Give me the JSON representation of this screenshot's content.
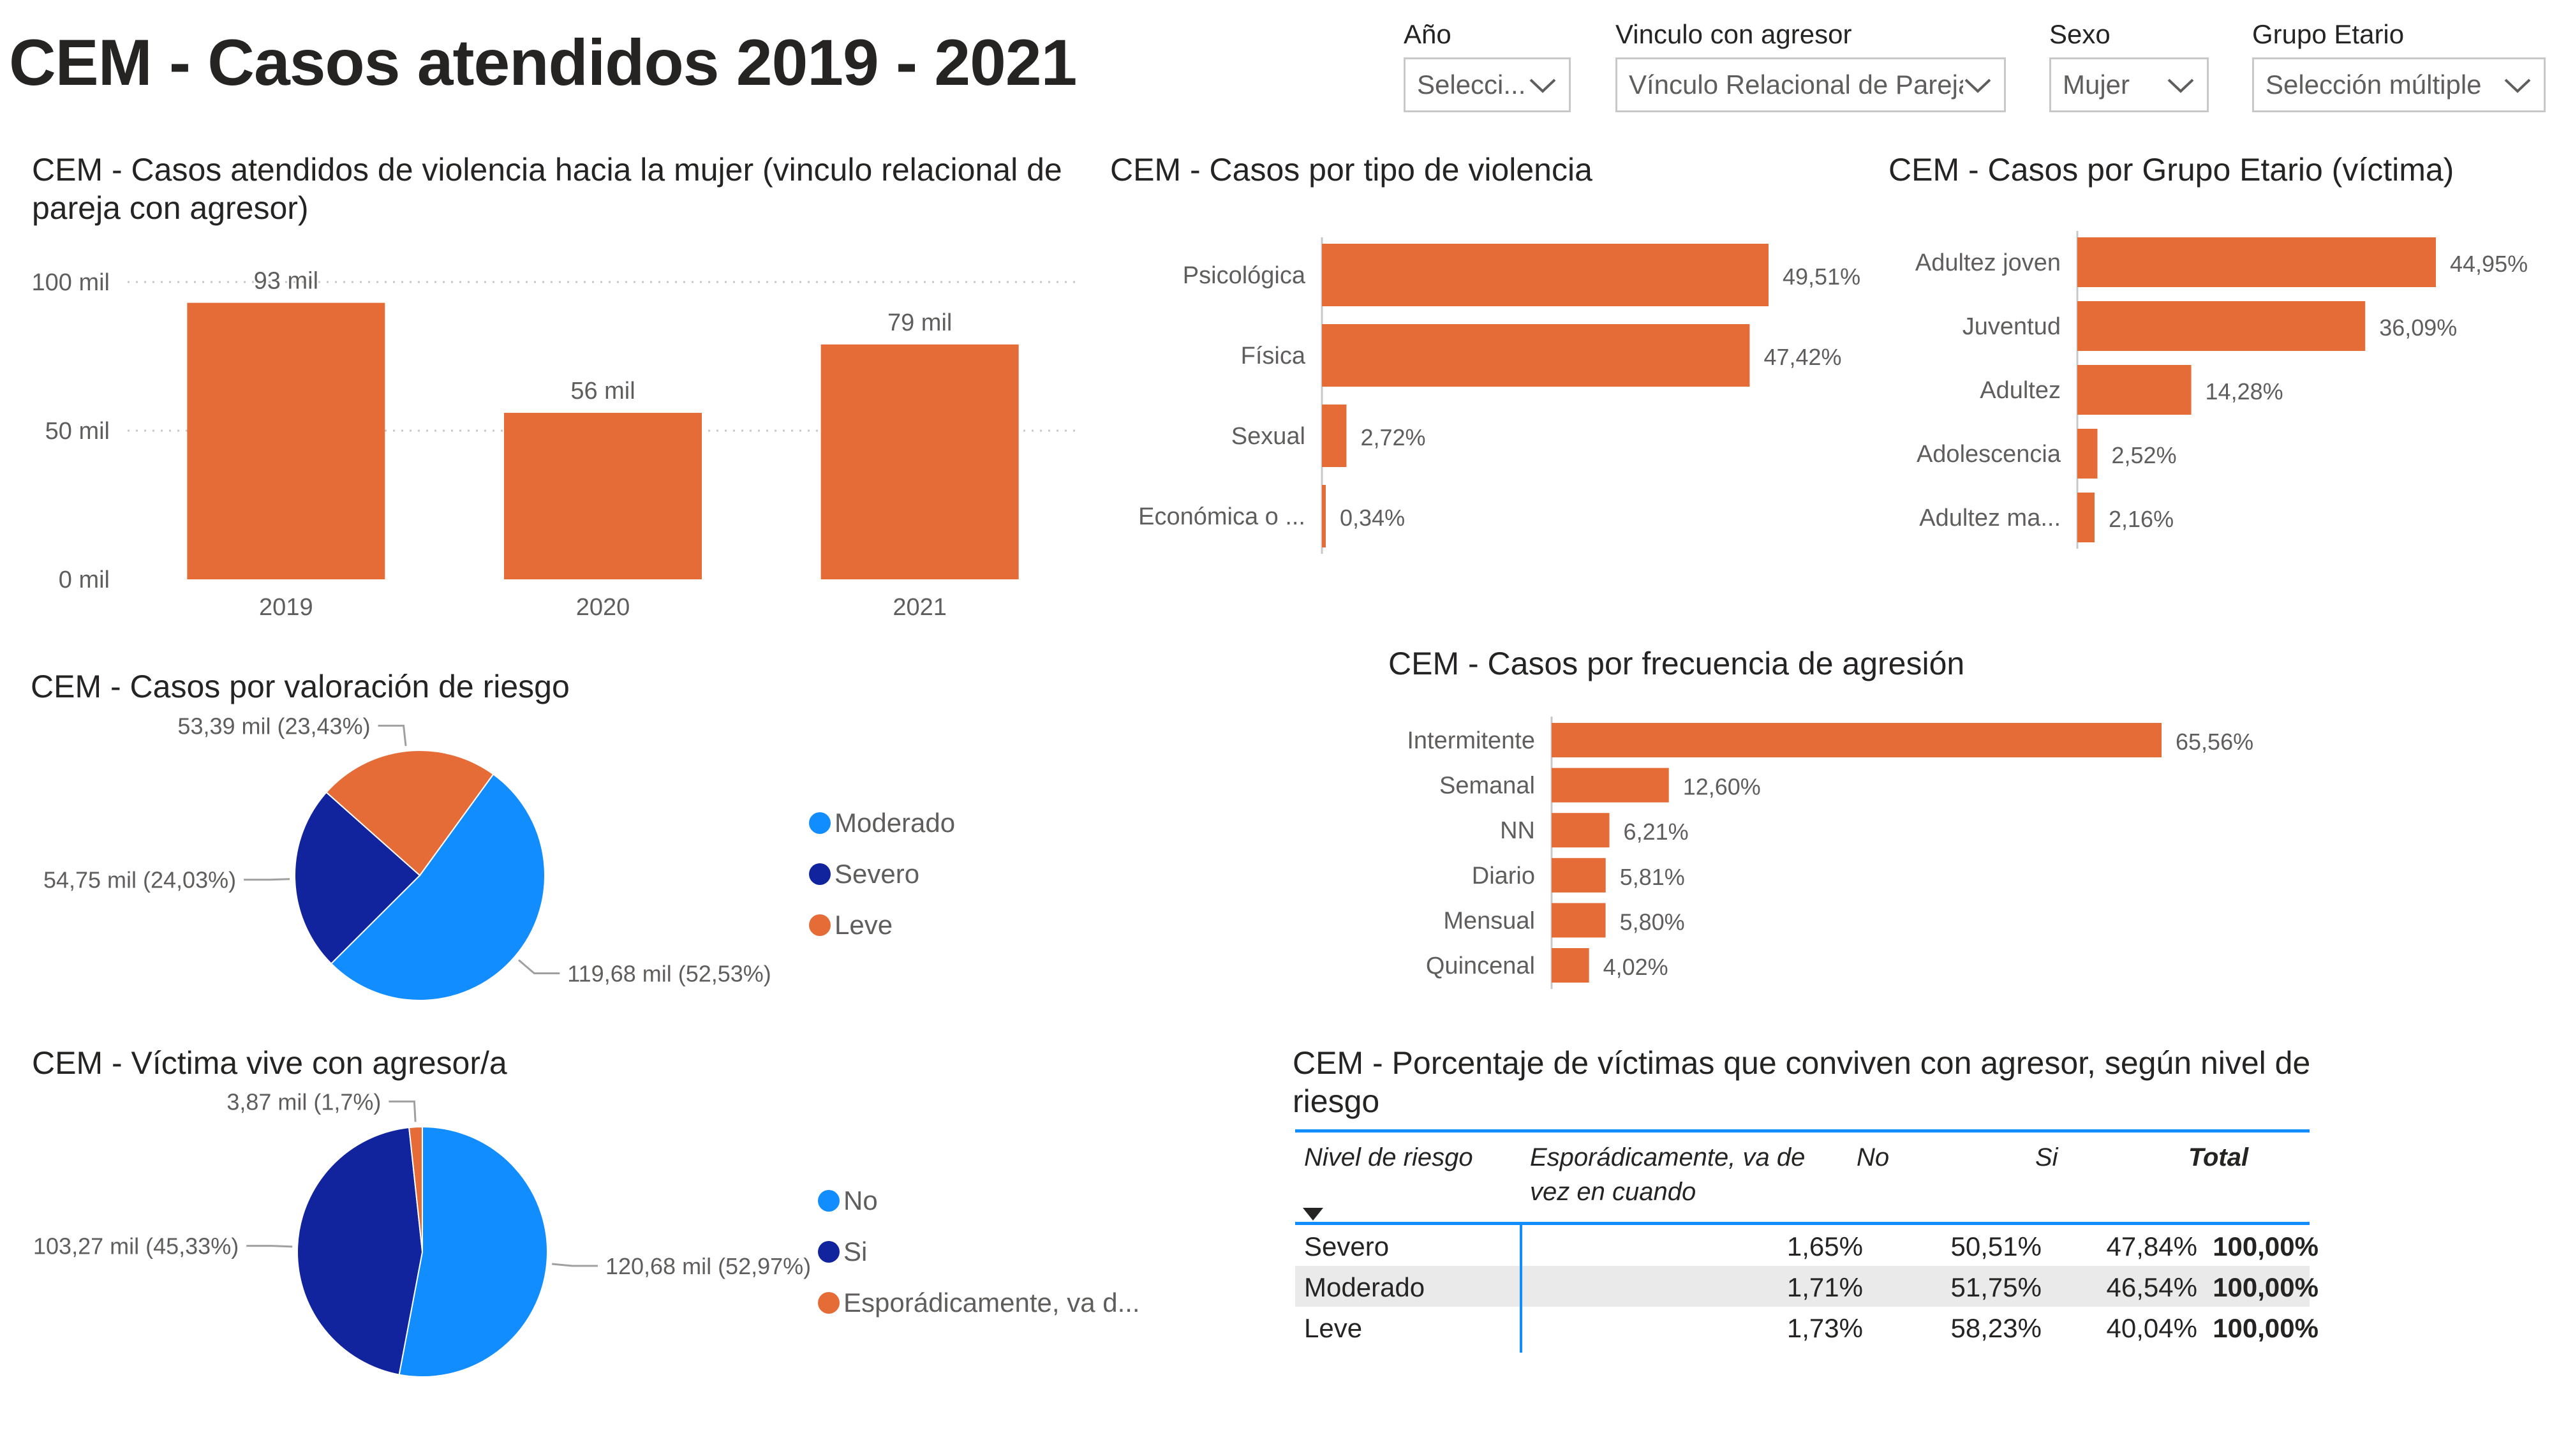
{
  "page_title": "CEM - Casos atendidos 2019 - 2021",
  "filters": [
    {
      "label": "Año",
      "value": "Selecci..."
    },
    {
      "label": "Vinculo con agresor",
      "value": "Vínculo Relacional de Pareja"
    },
    {
      "label": "Sexo",
      "value": "Mujer"
    },
    {
      "label": "Grupo Etario",
      "value": "Selección múltiple"
    }
  ],
  "colors": {
    "orange": "#e66c37",
    "blue": "#118dff",
    "navy": "#12239e",
    "axis_text": "#605e5c"
  },
  "chart_data": [
    {
      "id": "anual",
      "type": "bar",
      "title": "CEM - Casos atendidos de violencia hacia la mujer (vinculo relacional de pareja con agresor)",
      "categories": [
        "2019",
        "2020",
        "2021"
      ],
      "values": [
        93000,
        56000,
        79000
      ],
      "data_labels": [
        "93 mil",
        "56 mil",
        "79 mil"
      ],
      "y_ticks": [
        0,
        50000,
        100000
      ],
      "y_tick_labels": [
        "0 mil",
        "50 mil",
        "100 mil"
      ],
      "ylim": [
        0,
        100000
      ],
      "grid": true
    },
    {
      "id": "tipo",
      "type": "bar",
      "orientation": "horizontal",
      "title": "CEM - Casos por tipo de violencia",
      "categories": [
        "Psicológica",
        "Física",
        "Sexual",
        "Económica o ..."
      ],
      "values": [
        49.51,
        47.42,
        2.72,
        0.34
      ],
      "data_labels": [
        "49,51%",
        "47,42%",
        "2,72%",
        "0,34%"
      ]
    },
    {
      "id": "etario",
      "type": "bar",
      "orientation": "horizontal",
      "title": "CEM - Casos por Grupo Etario (víctima)",
      "categories": [
        "Adultez joven",
        "Juventud",
        "Adultez",
        "Adolescencia",
        "Adultez ma..."
      ],
      "values": [
        44.95,
        36.09,
        14.28,
        2.52,
        2.16
      ],
      "data_labels": [
        "44,95%",
        "36,09%",
        "14,28%",
        "2,52%",
        "2,16%"
      ]
    },
    {
      "id": "frecuencia",
      "type": "bar",
      "orientation": "horizontal",
      "title": "CEM - Casos por frecuencia de agresión",
      "categories": [
        "Intermitente",
        "Semanal",
        "NN",
        "Diario",
        "Mensual",
        "Quincenal"
      ],
      "values": [
        65.56,
        12.6,
        6.21,
        5.81,
        5.8,
        4.02
      ],
      "data_labels": [
        "65,56%",
        "12,60%",
        "6,21%",
        "5,81%",
        "5,80%",
        "4,02%"
      ]
    },
    {
      "id": "riesgo",
      "type": "pie",
      "title": "CEM - Casos por valoración de riesgo",
      "slices": [
        {
          "name": "Moderado",
          "value": 119.68,
          "label": "119,68 mil (52,53%)",
          "color": "#118dff"
        },
        {
          "name": "Severo",
          "value": 54.75,
          "label": "54,75 mil (24,03%)",
          "color": "#12239e"
        },
        {
          "name": "Leve",
          "value": 53.39,
          "label": "53,39 mil (23,43%)",
          "color": "#e66c37"
        }
      ],
      "legend": [
        "Moderado",
        "Severo",
        "Leve"
      ],
      "legend_position": "right"
    },
    {
      "id": "convive",
      "type": "pie",
      "title": "CEM - Víctima vive con agresor/a",
      "slices": [
        {
          "name": "No",
          "value": 120.68,
          "label": "120,68 mil (52,97%)",
          "color": "#118dff"
        },
        {
          "name": "Si",
          "value": 103.27,
          "label": "103,27 mil (45,33%)",
          "color": "#12239e"
        },
        {
          "name": "Esporádicamente, va d...",
          "value": 3.87,
          "label": "3,87 mil (1,7%)",
          "color": "#e66c37"
        }
      ],
      "legend": [
        "No",
        "Si",
        "Esporádicamente, va d..."
      ],
      "legend_position": "right"
    },
    {
      "id": "tabla",
      "type": "table",
      "title": "CEM - Porcentaje de víctimas que conviven con agresor, según nivel de riesgo",
      "columns": [
        "Nivel de riesgo",
        "Esporádicamente, va de vez en cuando",
        "No",
        "Si",
        "Total"
      ],
      "rows": [
        [
          "Severo",
          "1,65%",
          "50,51%",
          "47,84%",
          "100,00%"
        ],
        [
          "Moderado",
          "1,71%",
          "51,75%",
          "46,54%",
          "100,00%"
        ],
        [
          "Leve",
          "1,73%",
          "58,23%",
          "40,04%",
          "100,00%"
        ]
      ]
    }
  ]
}
